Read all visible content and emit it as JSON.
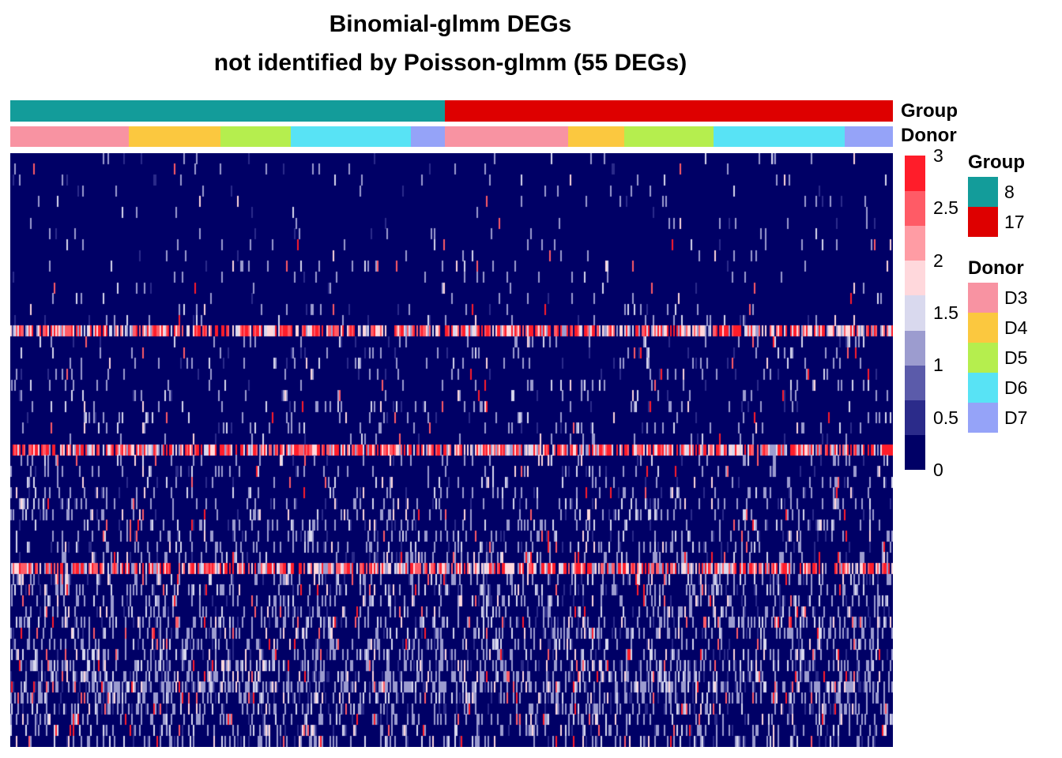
{
  "title": {
    "line1": "Binomial-glmm DEGs",
    "line2": "not identified by Poisson-glmm (55 DEGs)"
  },
  "annotations": {
    "group_label": "Group",
    "donor_label": "Donor"
  },
  "legend_group": {
    "title": "Group",
    "items": [
      {
        "label": "8",
        "color": "#139C9A"
      },
      {
        "label": "17",
        "color": "#DE0000"
      }
    ]
  },
  "legend_donor": {
    "title": "Donor",
    "items": [
      {
        "label": "D3",
        "color": "#F893A2"
      },
      {
        "label": "D4",
        "color": "#FBC83F"
      },
      {
        "label": "D5",
        "color": "#B5EE4E"
      },
      {
        "label": "D6",
        "color": "#58E3F5"
      },
      {
        "label": "D7",
        "color": "#95A3F8"
      }
    ]
  },
  "colorbar": {
    "ticks": [
      "3",
      "2.5",
      "2",
      "1.5",
      "1",
      "0.5",
      "0"
    ],
    "colors": [
      "#000066",
      "#2B2B8A",
      "#5B5BAA",
      "#9C9CCF",
      "#D9D9EE",
      "#FFD8DC",
      "#FF9CA4",
      "#FF5B66",
      "#FF1D2A"
    ]
  },
  "chart_data": {
    "type": "heatmap",
    "title": "Binomial-glmm DEGs\nnot identified by Poisson-glmm (55 DEGs)",
    "n_genes": 55,
    "value_range": [
      0,
      3
    ],
    "column_groups": [
      {
        "group": "8",
        "donor": "D3",
        "fraction": 0.134
      },
      {
        "group": "8",
        "donor": "D4",
        "fraction": 0.104
      },
      {
        "group": "8",
        "donor": "D5",
        "fraction": 0.08
      },
      {
        "group": "8",
        "donor": "D6",
        "fraction": 0.136
      },
      {
        "group": "8",
        "donor": "D7",
        "fraction": 0.038
      },
      {
        "group": "17",
        "donor": "D3",
        "fraction": 0.14
      },
      {
        "group": "17",
        "donor": "D4",
        "fraction": 0.064
      },
      {
        "group": "17",
        "donor": "D5",
        "fraction": 0.101
      },
      {
        "group": "17",
        "donor": "D6",
        "fraction": 0.148
      },
      {
        "group": "17",
        "donor": "D7",
        "fraction": 0.055
      }
    ],
    "high_expression_rows": [
      16,
      27,
      38
    ],
    "row_mean_levels": [
      0.05,
      0.05,
      0.04,
      0.04,
      0.05,
      0.04,
      0.05,
      0.05,
      0.06,
      0.06,
      0.08,
      0.06,
      0.07,
      0.06,
      0.07,
      0.07,
      2.2,
      0.12,
      0.15,
      0.12,
      0.14,
      0.12,
      0.12,
      0.16,
      0.15,
      0.18,
      0.15,
      2.4,
      0.2,
      0.22,
      0.25,
      0.25,
      0.3,
      0.3,
      0.32,
      0.34,
      0.35,
      0.4,
      1.8,
      0.45,
      0.42,
      0.45,
      0.45,
      0.48,
      0.5,
      0.5,
      0.55,
      0.6,
      0.7,
      0.9,
      0.6,
      0.55,
      0.5,
      0.45,
      0.4
    ]
  }
}
